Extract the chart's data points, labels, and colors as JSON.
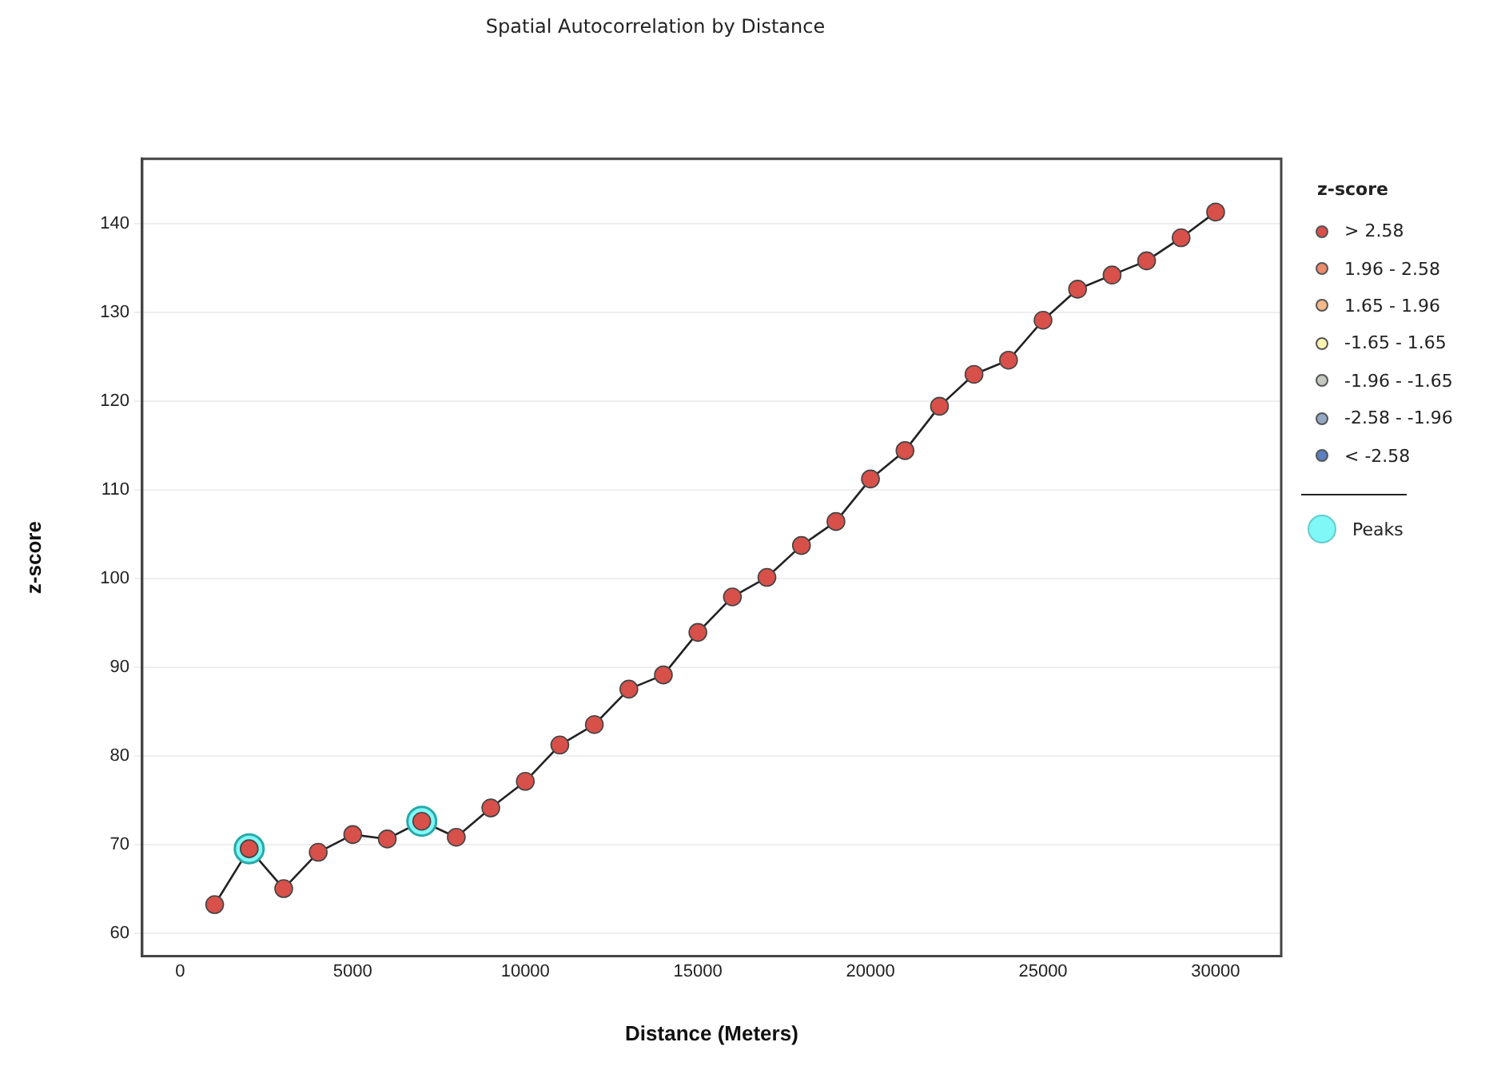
{
  "chart_data": {
    "type": "line",
    "title": "Spatial Autocorrelation by Distance",
    "xlabel": "Distance (Meters)",
    "ylabel": "z-score",
    "legend_title": "z-score",
    "legend": "right",
    "grid": "y",
    "x": [
      1000,
      2000,
      3000,
      4000,
      5000,
      6000,
      7000,
      8000,
      9000,
      10000,
      11000,
      12000,
      13000,
      14000,
      15000,
      16000,
      17000,
      18000,
      19000,
      20000,
      21000,
      22000,
      23000,
      24000,
      25000,
      26000,
      27000,
      28000,
      29000,
      30000
    ],
    "xlim": [
      -1100,
      31900
    ],
    "xticks": [
      0,
      5000,
      10000,
      15000,
      20000,
      25000,
      30000
    ],
    "ylim": [
      57.4,
      147.3
    ],
    "yticks": [
      60,
      70,
      80,
      90,
      100,
      110,
      120,
      130,
      140
    ],
    "series": [
      {
        "type": "line",
        "color": "#222222",
        "marker": "none",
        "values": [
          63.2,
          69.5,
          65,
          69.1,
          71.1,
          70.6,
          72.6,
          70.8,
          74.1,
          77.1,
          81.2,
          83.5,
          87.5,
          89.1,
          93.9,
          97.9,
          100.1,
          103.7,
          106.4,
          111.2,
          114.4,
          119.4,
          123.0,
          124.6,
          129.1,
          132.6,
          134.2,
          135.8,
          138.4,
          141.3
        ]
      },
      {
        "type": "scatter",
        "name": "> 2.58",
        "color": "#d7504a",
        "marker": "circle",
        "values": [
          63.2,
          69.5,
          65,
          69.1,
          71.1,
          70.6,
          72.6,
          70.8,
          74.1,
          77.1,
          81.2,
          83.5,
          87.5,
          89.1,
          93.9,
          97.9,
          100.1,
          103.7,
          106.4,
          111.2,
          114.4,
          119.4,
          123.0,
          124.6,
          129.1,
          132.6,
          134.2,
          135.8,
          138.4,
          141.3
        ]
      },
      {
        "type": "scatter",
        "name": "1.96 - 2.58",
        "color": "#ec8a6c",
        "marker": "circle",
        "values": [
          null,
          null,
          null,
          null,
          null,
          null,
          null,
          null,
          null,
          null,
          null,
          null,
          null,
          null,
          null,
          null,
          null,
          null,
          null,
          null,
          null,
          null,
          null,
          null,
          null,
          null,
          null,
          null,
          null,
          null
        ]
      },
      {
        "type": "scatter",
        "name": "1.65 - 1.96",
        "color": "#f7b987",
        "marker": "circle",
        "values": [
          null,
          null,
          null,
          null,
          null,
          null,
          null,
          null,
          null,
          null,
          null,
          null,
          null,
          null,
          null,
          null,
          null,
          null,
          null,
          null,
          null,
          null,
          null,
          null,
          null,
          null,
          null,
          null,
          null,
          null
        ]
      },
      {
        "type": "scatter",
        "name": "-1.65 - 1.65",
        "color": "#fbf3b0",
        "marker": "circle",
        "values": [
          null,
          null,
          null,
          null,
          null,
          null,
          null,
          null,
          null,
          null,
          null,
          null,
          null,
          null,
          null,
          null,
          null,
          null,
          null,
          null,
          null,
          null,
          null,
          null,
          null,
          null,
          null,
          null,
          null,
          null
        ]
      },
      {
        "type": "scatter",
        "name": "-1.96 - -1.65",
        "color": "#c5c9bd",
        "marker": "circle",
        "values": [
          null,
          null,
          null,
          null,
          null,
          null,
          null,
          null,
          null,
          null,
          null,
          null,
          null,
          null,
          null,
          null,
          null,
          null,
          null,
          null,
          null,
          null,
          null,
          null,
          null,
          null,
          null,
          null,
          null,
          null
        ]
      },
      {
        "type": "scatter",
        "name": "-2.58 - -1.96",
        "color": "#94a8c4",
        "marker": "circle",
        "values": [
          null,
          null,
          null,
          null,
          null,
          null,
          null,
          null,
          null,
          null,
          null,
          null,
          null,
          null,
          null,
          null,
          null,
          null,
          null,
          null,
          null,
          null,
          null,
          null,
          null,
          null,
          null,
          null,
          null,
          null
        ]
      },
      {
        "type": "scatter",
        "name": "< -2.58",
        "color": "#5b7fbf",
        "marker": "circle",
        "values": [
          null,
          null,
          null,
          null,
          null,
          null,
          null,
          null,
          null,
          null,
          null,
          null,
          null,
          null,
          null,
          null,
          null,
          null,
          null,
          null,
          null,
          null,
          null,
          null,
          null,
          null,
          null,
          null,
          null,
          null
        ]
      },
      {
        "type": "scatter",
        "name": "Peaks",
        "color": "#80f8f8",
        "marker": "circle",
        "values": [
          null,
          69.5,
          null,
          null,
          null,
          null,
          72.6,
          null,
          null,
          null,
          null,
          null,
          null,
          null,
          null,
          null,
          null,
          null,
          null,
          null,
          null,
          null,
          null,
          null,
          null,
          null,
          null,
          null,
          null,
          null
        ]
      }
    ]
  }
}
